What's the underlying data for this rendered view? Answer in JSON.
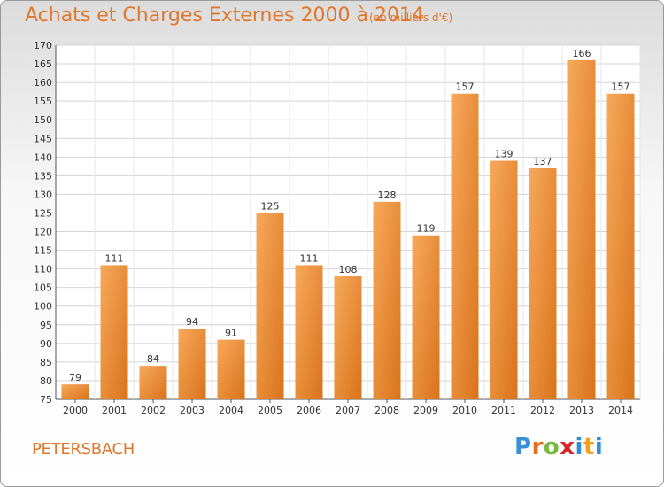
{
  "header": {
    "title": "Achats et Charges Externes 2000 à 2014",
    "subtitle": "(en milliers d'€)"
  },
  "footer": {
    "place": "PETERSBACH",
    "logo_letters": [
      "P",
      "r",
      "o",
      "x",
      "i",
      "t",
      "i"
    ],
    "logo_colors": [
      "#3a8fd8",
      "#e86a1a",
      "#7ab73d",
      "#d7262c",
      "#2d8ed6",
      "#f2a21a",
      "#2d8ed6"
    ]
  },
  "chart_data": {
    "type": "bar",
    "title": "Achats et Charges Externes 2000 à 2014",
    "subtitle": "(en milliers d'€)",
    "categories": [
      "2000",
      "2001",
      "2002",
      "2003",
      "2004",
      "2005",
      "2006",
      "2007",
      "2008",
      "2009",
      "2010",
      "2011",
      "2012",
      "2013",
      "2014"
    ],
    "values": [
      79,
      111,
      84,
      94,
      91,
      125,
      111,
      108,
      128,
      119,
      157,
      139,
      137,
      166,
      157
    ],
    "ylim": [
      75,
      170
    ],
    "yticks": [
      75,
      80,
      85,
      90,
      95,
      100,
      105,
      110,
      115,
      120,
      125,
      130,
      135,
      140,
      145,
      150,
      155,
      160,
      165,
      170
    ],
    "grid": true,
    "bar_color_light": "#f7a95c",
    "bar_color_dark": "#d9731a"
  }
}
